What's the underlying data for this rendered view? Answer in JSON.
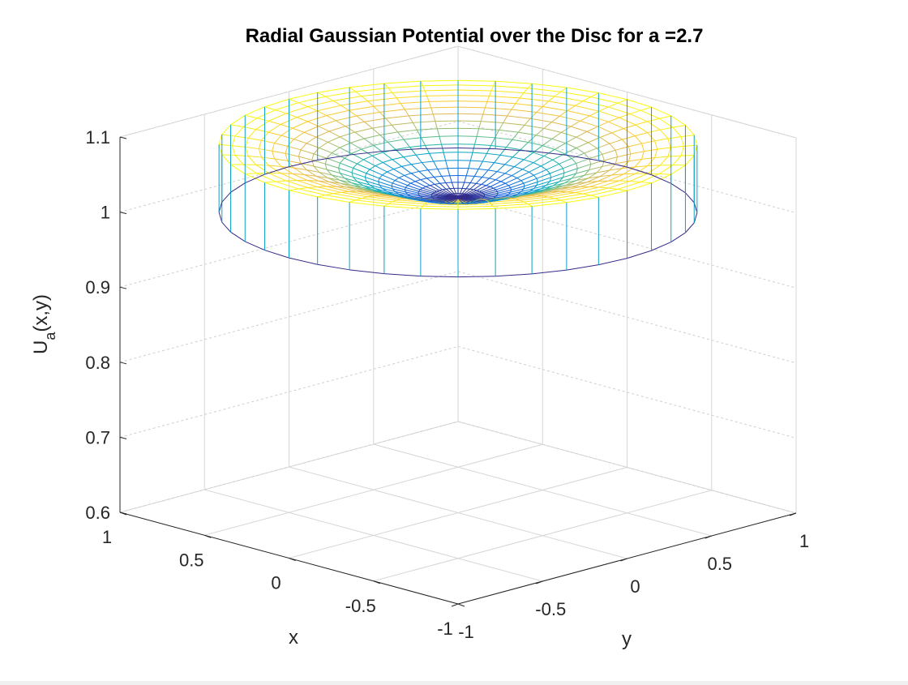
{
  "chart_data": {
    "type": "surface-mesh",
    "title": "Radial Gaussian Potential over the Disc for a =2.7",
    "parameter_a": 2.7,
    "xlabel": "x",
    "ylabel": "y",
    "zlabel_main": "U",
    "zlabel_sub": "a",
    "zlabel_args": "(x,y)",
    "xlim": [
      -1,
      1
    ],
    "ylim": [
      -1,
      1
    ],
    "zlim": [
      0.6,
      1.1
    ],
    "x_ticks": [
      {
        "value": 1,
        "label": "1"
      },
      {
        "value": 0.5,
        "label": "0.5"
      },
      {
        "value": 0,
        "label": "0"
      },
      {
        "value": -0.5,
        "label": "-0.5"
      },
      {
        "value": -1,
        "label": "-1"
      }
    ],
    "y_ticks": [
      {
        "value": -1,
        "label": "-1"
      },
      {
        "value": -0.5,
        "label": "-0.5"
      },
      {
        "value": 0,
        "label": "0"
      },
      {
        "value": 0.5,
        "label": "0.5"
      },
      {
        "value": 1,
        "label": "1"
      }
    ],
    "z_ticks": [
      {
        "value": 1.1,
        "label": "1.1"
      },
      {
        "value": 1,
        "label": "1"
      },
      {
        "value": 0.9,
        "label": "0.9"
      },
      {
        "value": 0.8,
        "label": "0.8"
      },
      {
        "value": 0.7,
        "label": "0.7"
      },
      {
        "value": 0.6,
        "label": "0.6"
      }
    ],
    "surface": {
      "domain": "disc",
      "radius": 1,
      "function": "U = exp(-r^2/a^2) - scaled radial gaussian bowl",
      "z_center": 1.02,
      "z_edge": 1.09,
      "radial_steps": 18,
      "angular_steps": 40,
      "colormap": "parula"
    },
    "grid": true,
    "view": {
      "azimuth": -37.5,
      "elevation": 30
    }
  }
}
